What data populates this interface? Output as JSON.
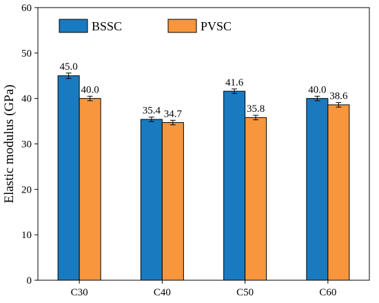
{
  "chart_data": {
    "type": "bar",
    "categories": [
      "C30",
      "C40",
      "C50",
      "C60"
    ],
    "series": [
      {
        "name": "BSSC",
        "values": [
          45.0,
          35.4,
          41.6,
          40.0
        ],
        "errors": [
          0.6,
          0.5,
          0.5,
          0.5
        ],
        "labels": [
          "45.0",
          "35.4",
          "41.6",
          "40.0"
        ],
        "color": "#1a7abf"
      },
      {
        "name": "PVSC",
        "values": [
          40.0,
          34.7,
          35.8,
          38.6
        ],
        "errors": [
          0.5,
          0.5,
          0.5,
          0.5
        ],
        "labels": [
          "40.0",
          "34.7",
          "35.8",
          "38.6"
        ],
        "color": "#f7963d"
      }
    ],
    "title": "",
    "xlabel": "",
    "ylabel": "Elastic modulus (GPa)",
    "ylim": [
      0,
      60
    ],
    "yticks": [
      0,
      10,
      20,
      30,
      40,
      50,
      60
    ],
    "legend_position": "top-left",
    "grid": false
  }
}
